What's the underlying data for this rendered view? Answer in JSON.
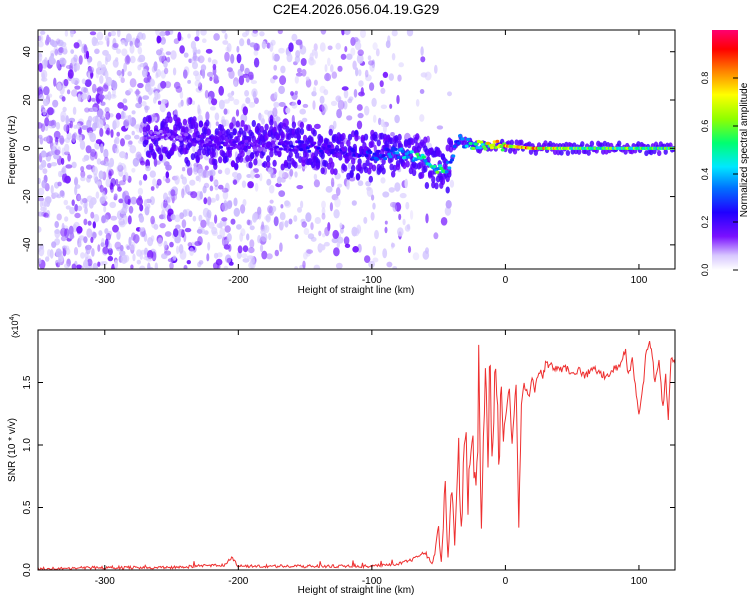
{
  "title": "C2E4.2026.056.04.19.G29",
  "chart_data": [
    {
      "type": "heatmap",
      "title": "C2E4.2026.056.04.19.G29",
      "xlabel": "Height of straight line (km)",
      "ylabel": "Frequency (Hz)",
      "xlim": [
        -350,
        127
      ],
      "ylim": [
        -50,
        49
      ],
      "xticks": [
        -300,
        -200,
        -100,
        0,
        100
      ],
      "yticks": [
        -40,
        -20,
        0,
        20,
        40
      ],
      "xtick_labels": [
        "-300",
        "-200",
        "-100",
        "0",
        "100"
      ],
      "ytick_labels": [
        "-40",
        "-20",
        "0",
        "20",
        "40"
      ],
      "colorbar": {
        "label": "Normalized spectral amplitude",
        "range": [
          0.0,
          1.0
        ],
        "ticks": [
          0.0,
          0.2,
          0.4,
          0.6,
          0.8
        ],
        "tick_labels": [
          "0.0",
          "0.2",
          "0.4",
          "0.6",
          "0.8"
        ],
        "colormap": [
          "#ffffff",
          "#c9b8ff",
          "#6a00ff",
          "#1f00ff",
          "#0060ff",
          "#00e0ff",
          "#00ff60",
          "#a0ff00",
          "#ffff00",
          "#ff8000",
          "#ff0000",
          "#ff0080"
        ]
      },
      "spectrum_ridge": {
        "description": "dominant frequency band (Hz) per height (km)",
        "heights": [
          -270,
          -240,
          -210,
          -180,
          -150,
          -120,
          -100,
          -85,
          -75,
          -65,
          -55,
          -45,
          -40,
          -35,
          -30,
          -20,
          -10,
          0,
          20,
          60,
          100,
          127
        ],
        "frequency": [
          6,
          4,
          2,
          1,
          1,
          -2,
          -3,
          -2,
          -2,
          -4,
          -7,
          -10,
          -4,
          4,
          2,
          1,
          2,
          1,
          0,
          0,
          0,
          0
        ],
        "amplitude": [
          0.15,
          0.18,
          0.22,
          0.18,
          0.25,
          0.22,
          0.3,
          0.35,
          0.45,
          0.5,
          0.5,
          0.55,
          0.35,
          0.35,
          0.4,
          0.6,
          0.7,
          0.75,
          0.8,
          0.55,
          0.6,
          0.55
        ]
      },
      "noise_extent_km": [
        -350,
        -40
      ]
    },
    {
      "type": "line",
      "xlabel": "Height of straight line (km)",
      "ylabel": "SNR (10 * v/v)",
      "scale_label": "(x10",
      "scale_exponent": "4",
      "xlim": [
        -350,
        127
      ],
      "ylim": [
        0,
        1.92
      ],
      "xticks": [
        -300,
        -200,
        -100,
        0,
        100
      ],
      "yticks": [
        0.0,
        0.5,
        1.0,
        1.5
      ],
      "xtick_labels": [
        "-300",
        "-200",
        "-100",
        "0",
        "100"
      ],
      "ytick_labels": [
        "0.0",
        "0.5",
        "1.0",
        "1.5"
      ],
      "series": [
        {
          "name": "SNR",
          "color": "#ee3030",
          "x": [
            -350,
            -300,
            -250,
            -210,
            -205,
            -200,
            -150,
            -100,
            -80,
            -70,
            -60,
            -55,
            -50,
            -48,
            -45,
            -43,
            -40,
            -38,
            -35,
            -33,
            -30,
            -28,
            -25,
            -22,
            -20,
            -18,
            -15,
            -13,
            -12,
            -10,
            -8,
            -5,
            -3,
            0,
            3,
            5,
            8,
            10,
            12,
            14,
            18,
            20,
            22,
            25,
            28,
            30,
            35,
            40,
            45,
            50,
            55,
            60,
            65,
            70,
            75,
            80,
            85,
            90,
            92,
            95,
            98,
            100,
            103,
            105,
            108,
            110,
            112,
            115,
            118,
            120,
            122,
            124,
            127
          ],
          "y": [
            0.01,
            0.02,
            0.02,
            0.04,
            0.1,
            0.03,
            0.03,
            0.03,
            0.05,
            0.08,
            0.15,
            0.05,
            0.3,
            0.08,
            0.65,
            0.12,
            0.7,
            0.2,
            0.9,
            0.3,
            1.3,
            0.5,
            1.2,
            0.6,
            1.5,
            0.3,
            1.92,
            0.8,
            1.6,
            1.05,
            1.45,
            1.0,
            1.3,
            1.2,
            1.45,
            1.0,
            1.5,
            0.35,
            1.3,
            1.48,
            1.4,
            1.55,
            1.45,
            1.6,
            1.55,
            1.65,
            1.63,
            1.6,
            1.62,
            1.58,
            1.6,
            1.55,
            1.62,
            1.58,
            1.55,
            1.6,
            1.62,
            1.75,
            1.55,
            1.7,
            1.4,
            1.25,
            1.45,
            1.7,
            1.85,
            1.7,
            1.5,
            1.65,
            1.3,
            1.55,
            1.2,
            1.7,
            1.65
          ]
        }
      ]
    }
  ]
}
